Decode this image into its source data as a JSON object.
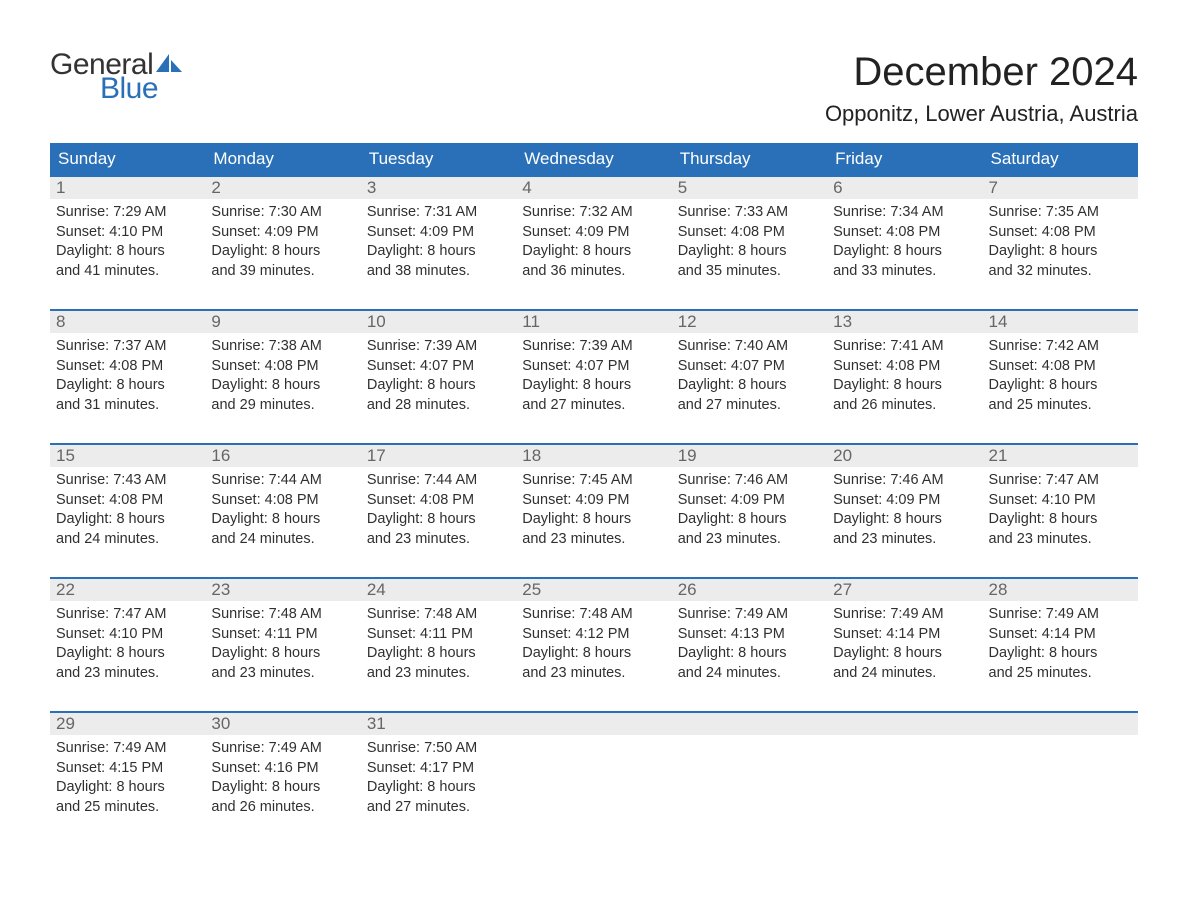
{
  "logo": {
    "word1": "General",
    "word2": "Blue",
    "sail_color": "#2a70b8"
  },
  "title": "December 2024",
  "location": "Opponitz, Lower Austria, Austria",
  "colors": {
    "header_bg": "#2a70b8",
    "header_text": "#ffffff",
    "daynum_bg": "#ececec",
    "daynum_text": "#666666",
    "body_text": "#303030",
    "week_border": "#2a70b8"
  },
  "fonts": {
    "title_size_pt": 30,
    "location_size_pt": 17,
    "dow_size_pt": 13,
    "daynum_size_pt": 13,
    "body_size_pt": 11
  },
  "days_of_week": [
    "Sunday",
    "Monday",
    "Tuesday",
    "Wednesday",
    "Thursday",
    "Friday",
    "Saturday"
  ],
  "weeks": [
    [
      {
        "n": "1",
        "sunrise": "Sunrise: 7:29 AM",
        "sunset": "Sunset: 4:10 PM",
        "dl1": "Daylight: 8 hours",
        "dl2": "and 41 minutes."
      },
      {
        "n": "2",
        "sunrise": "Sunrise: 7:30 AM",
        "sunset": "Sunset: 4:09 PM",
        "dl1": "Daylight: 8 hours",
        "dl2": "and 39 minutes."
      },
      {
        "n": "3",
        "sunrise": "Sunrise: 7:31 AM",
        "sunset": "Sunset: 4:09 PM",
        "dl1": "Daylight: 8 hours",
        "dl2": "and 38 minutes."
      },
      {
        "n": "4",
        "sunrise": "Sunrise: 7:32 AM",
        "sunset": "Sunset: 4:09 PM",
        "dl1": "Daylight: 8 hours",
        "dl2": "and 36 minutes."
      },
      {
        "n": "5",
        "sunrise": "Sunrise: 7:33 AM",
        "sunset": "Sunset: 4:08 PM",
        "dl1": "Daylight: 8 hours",
        "dl2": "and 35 minutes."
      },
      {
        "n": "6",
        "sunrise": "Sunrise: 7:34 AM",
        "sunset": "Sunset: 4:08 PM",
        "dl1": "Daylight: 8 hours",
        "dl2": "and 33 minutes."
      },
      {
        "n": "7",
        "sunrise": "Sunrise: 7:35 AM",
        "sunset": "Sunset: 4:08 PM",
        "dl1": "Daylight: 8 hours",
        "dl2": "and 32 minutes."
      }
    ],
    [
      {
        "n": "8",
        "sunrise": "Sunrise: 7:37 AM",
        "sunset": "Sunset: 4:08 PM",
        "dl1": "Daylight: 8 hours",
        "dl2": "and 31 minutes."
      },
      {
        "n": "9",
        "sunrise": "Sunrise: 7:38 AM",
        "sunset": "Sunset: 4:08 PM",
        "dl1": "Daylight: 8 hours",
        "dl2": "and 29 minutes."
      },
      {
        "n": "10",
        "sunrise": "Sunrise: 7:39 AM",
        "sunset": "Sunset: 4:07 PM",
        "dl1": "Daylight: 8 hours",
        "dl2": "and 28 minutes."
      },
      {
        "n": "11",
        "sunrise": "Sunrise: 7:39 AM",
        "sunset": "Sunset: 4:07 PM",
        "dl1": "Daylight: 8 hours",
        "dl2": "and 27 minutes."
      },
      {
        "n": "12",
        "sunrise": "Sunrise: 7:40 AM",
        "sunset": "Sunset: 4:07 PM",
        "dl1": "Daylight: 8 hours",
        "dl2": "and 27 minutes."
      },
      {
        "n": "13",
        "sunrise": "Sunrise: 7:41 AM",
        "sunset": "Sunset: 4:08 PM",
        "dl1": "Daylight: 8 hours",
        "dl2": "and 26 minutes."
      },
      {
        "n": "14",
        "sunrise": "Sunrise: 7:42 AM",
        "sunset": "Sunset: 4:08 PM",
        "dl1": "Daylight: 8 hours",
        "dl2": "and 25 minutes."
      }
    ],
    [
      {
        "n": "15",
        "sunrise": "Sunrise: 7:43 AM",
        "sunset": "Sunset: 4:08 PM",
        "dl1": "Daylight: 8 hours",
        "dl2": "and 24 minutes."
      },
      {
        "n": "16",
        "sunrise": "Sunrise: 7:44 AM",
        "sunset": "Sunset: 4:08 PM",
        "dl1": "Daylight: 8 hours",
        "dl2": "and 24 minutes."
      },
      {
        "n": "17",
        "sunrise": "Sunrise: 7:44 AM",
        "sunset": "Sunset: 4:08 PM",
        "dl1": "Daylight: 8 hours",
        "dl2": "and 23 minutes."
      },
      {
        "n": "18",
        "sunrise": "Sunrise: 7:45 AM",
        "sunset": "Sunset: 4:09 PM",
        "dl1": "Daylight: 8 hours",
        "dl2": "and 23 minutes."
      },
      {
        "n": "19",
        "sunrise": "Sunrise: 7:46 AM",
        "sunset": "Sunset: 4:09 PM",
        "dl1": "Daylight: 8 hours",
        "dl2": "and 23 minutes."
      },
      {
        "n": "20",
        "sunrise": "Sunrise: 7:46 AM",
        "sunset": "Sunset: 4:09 PM",
        "dl1": "Daylight: 8 hours",
        "dl2": "and 23 minutes."
      },
      {
        "n": "21",
        "sunrise": "Sunrise: 7:47 AM",
        "sunset": "Sunset: 4:10 PM",
        "dl1": "Daylight: 8 hours",
        "dl2": "and 23 minutes."
      }
    ],
    [
      {
        "n": "22",
        "sunrise": "Sunrise: 7:47 AM",
        "sunset": "Sunset: 4:10 PM",
        "dl1": "Daylight: 8 hours",
        "dl2": "and 23 minutes."
      },
      {
        "n": "23",
        "sunrise": "Sunrise: 7:48 AM",
        "sunset": "Sunset: 4:11 PM",
        "dl1": "Daylight: 8 hours",
        "dl2": "and 23 minutes."
      },
      {
        "n": "24",
        "sunrise": "Sunrise: 7:48 AM",
        "sunset": "Sunset: 4:11 PM",
        "dl1": "Daylight: 8 hours",
        "dl2": "and 23 minutes."
      },
      {
        "n": "25",
        "sunrise": "Sunrise: 7:48 AM",
        "sunset": "Sunset: 4:12 PM",
        "dl1": "Daylight: 8 hours",
        "dl2": "and 23 minutes."
      },
      {
        "n": "26",
        "sunrise": "Sunrise: 7:49 AM",
        "sunset": "Sunset: 4:13 PM",
        "dl1": "Daylight: 8 hours",
        "dl2": "and 24 minutes."
      },
      {
        "n": "27",
        "sunrise": "Sunrise: 7:49 AM",
        "sunset": "Sunset: 4:14 PM",
        "dl1": "Daylight: 8 hours",
        "dl2": "and 24 minutes."
      },
      {
        "n": "28",
        "sunrise": "Sunrise: 7:49 AM",
        "sunset": "Sunset: 4:14 PM",
        "dl1": "Daylight: 8 hours",
        "dl2": "and 25 minutes."
      }
    ],
    [
      {
        "n": "29",
        "sunrise": "Sunrise: 7:49 AM",
        "sunset": "Sunset: 4:15 PM",
        "dl1": "Daylight: 8 hours",
        "dl2": "and 25 minutes."
      },
      {
        "n": "30",
        "sunrise": "Sunrise: 7:49 AM",
        "sunset": "Sunset: 4:16 PM",
        "dl1": "Daylight: 8 hours",
        "dl2": "and 26 minutes."
      },
      {
        "n": "31",
        "sunrise": "Sunrise: 7:50 AM",
        "sunset": "Sunset: 4:17 PM",
        "dl1": "Daylight: 8 hours",
        "dl2": "and 27 minutes."
      },
      null,
      null,
      null,
      null
    ]
  ]
}
